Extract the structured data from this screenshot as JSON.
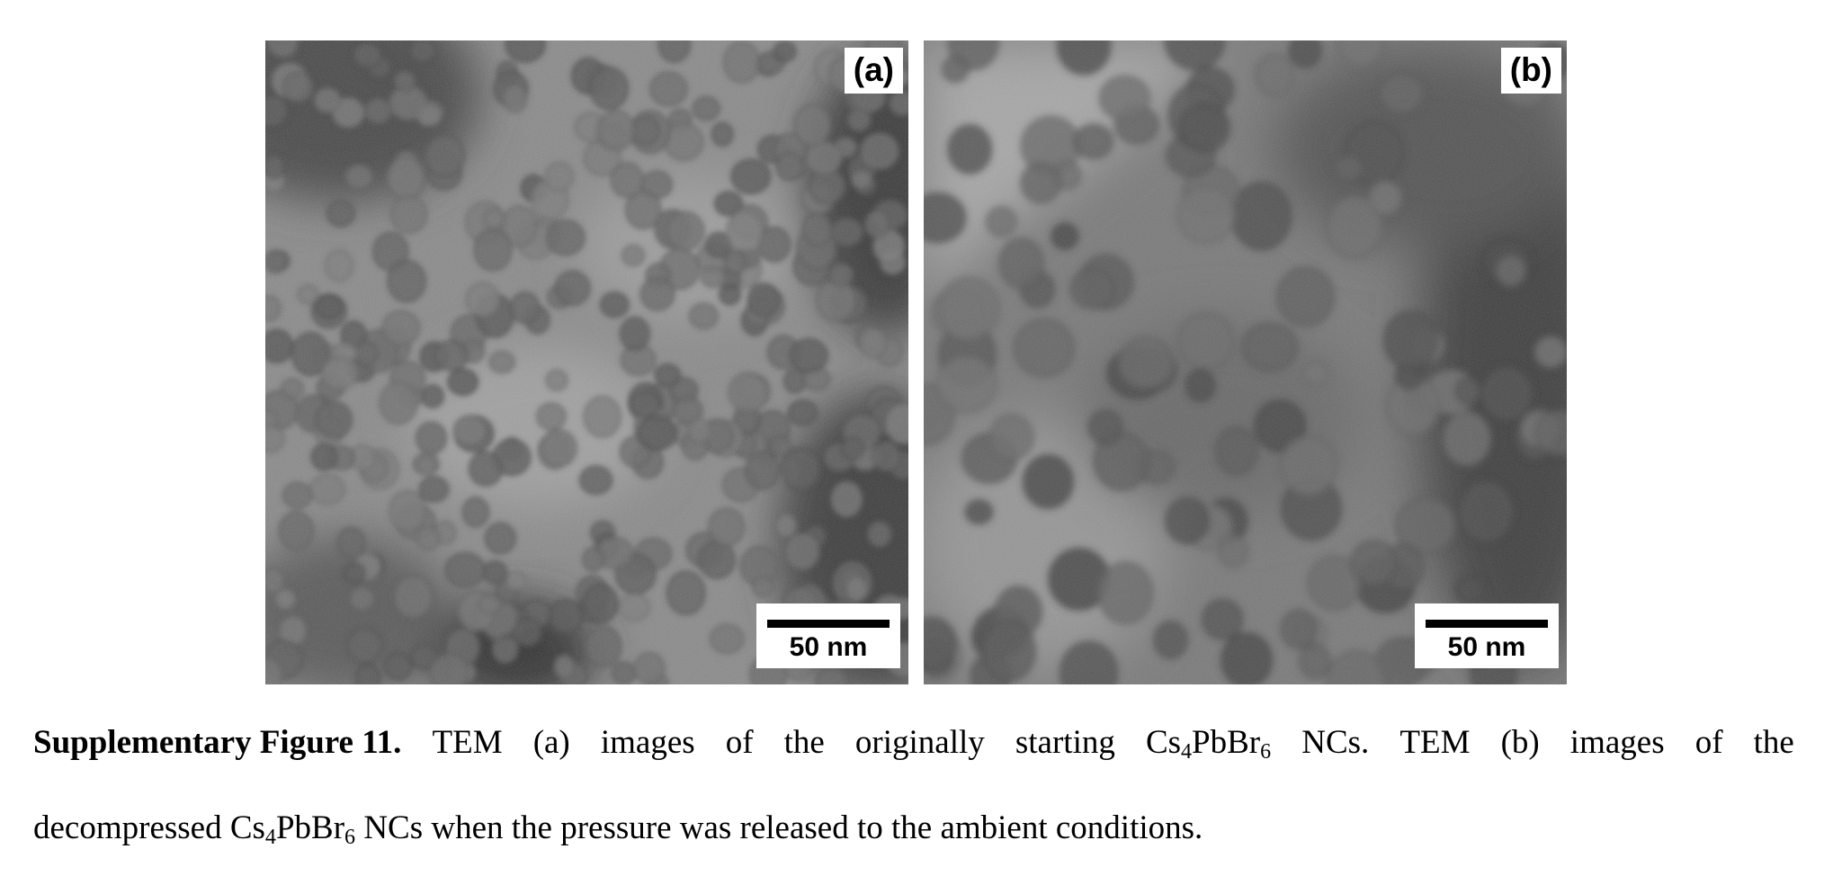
{
  "panels": [
    {
      "label": "(a)",
      "scale_text": "50 nm",
      "image": "tem-nanocrystals-original"
    },
    {
      "label": "(b)",
      "scale_text": "50 nm",
      "image": "tem-nanocrystals-decompressed"
    }
  ],
  "caption": {
    "bold_prefix": "Supplementary Figure 11.",
    "line1_words": [
      "TEM",
      "(a)",
      "images",
      "of",
      "the",
      "originally",
      "starting"
    ],
    "line1_formula": {
      "a": "Cs",
      "sub1": "4",
      "b": "PbBr",
      "sub2": "6",
      "tail": "NCs."
    },
    "line1_rest": [
      "TEM",
      "(b)",
      "images",
      "of",
      "the"
    ],
    "line2_start": "decompressed",
    "line2_formula": {
      "a": "Cs",
      "sub1": "4",
      "b": "PbBr",
      "sub2": "6"
    },
    "line2_end": "NCs when the pressure was released to the ambient conditions."
  }
}
